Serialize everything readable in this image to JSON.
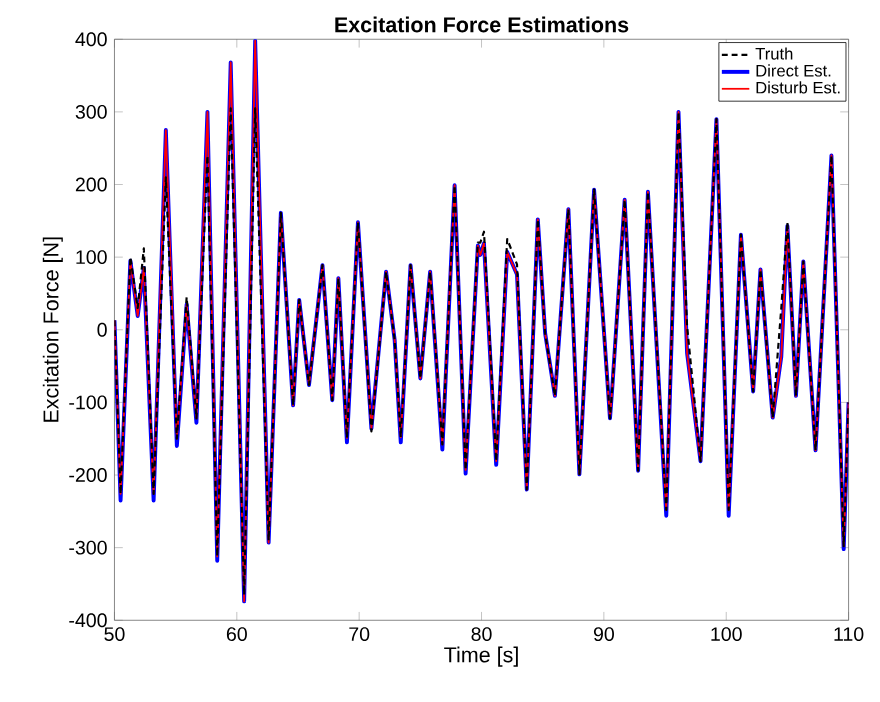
{
  "chart_data": {
    "type": "line",
    "title": "Excitation Force Estimations",
    "xlabel": "Time [s]",
    "ylabel": "Excitation Force [N]",
    "x": [
      50,
      50.5,
      51.3,
      51.9,
      52.4,
      53.2,
      54.2,
      55.1,
      55.9,
      56.7,
      57.6,
      58.4,
      59.5,
      60.6,
      61.5,
      62.6,
      63.6,
      64.6,
      65.1,
      65.9,
      67.0,
      67.8,
      68.3,
      69.0,
      69.9,
      71.0,
      72.2,
      72.9,
      73.4,
      74.2,
      75.0,
      75.8,
      76.8,
      77.8,
      78.7,
      79.7,
      79.9,
      80.2,
      81.2,
      82.1,
      82.9,
      83.7,
      84.6,
      85.2,
      86.0,
      87.1,
      88.0,
      89.2,
      90.5,
      90.7,
      91.7,
      92.8,
      93.6,
      95.1,
      96.1,
      96.8,
      97.9,
      99.2,
      100.2,
      101.2,
      102.2,
      102.8,
      103.8,
      104.5,
      105.0,
      105.7,
      106.3,
      107.3,
      108.6,
      109.6,
      110
    ],
    "series": [
      {
        "name": "Truth",
        "color": "#000000",
        "line_style": "dashed",
        "values": [
          13,
          -226,
          100,
          30,
          112,
          -226,
          210,
          -150,
          45,
          -122,
          240,
          -312,
          305,
          -365,
          305,
          -290,
          161,
          -104,
          41,
          -76,
          89,
          -97,
          71,
          -149,
          148,
          -140,
          80,
          -14,
          -148,
          89,
          -67,
          80,
          -158,
          199,
          -193,
          120,
          120,
          135,
          -181,
          125,
          90,
          -220,
          152,
          -5,
          -91,
          166,
          -199,
          193,
          -122,
          -77,
          179,
          -194,
          190,
          -248,
          300,
          5,
          -181,
          290,
          -248,
          131,
          -85,
          83,
          -121,
          30,
          148,
          -91,
          94,
          -166,
          240,
          -298,
          -100
        ]
      },
      {
        "name": "Direct Est.",
        "color": "#0000ff",
        "line_style": "solid",
        "values": [
          13,
          -235,
          95,
          19,
          85,
          -235,
          275,
          -160,
          35,
          -128,
          300,
          -318,
          368,
          -374,
          398,
          -293,
          161,
          -104,
          41,
          -76,
          89,
          -97,
          71,
          -155,
          148,
          -136,
          80,
          -14,
          -155,
          89,
          -67,
          80,
          -165,
          199,
          -198,
          116,
          103,
          119,
          -186,
          107,
          76,
          -220,
          152,
          -5,
          -91,
          166,
          -199,
          193,
          -122,
          -77,
          179,
          -194,
          190,
          -256,
          300,
          -32,
          -181,
          290,
          -256,
          131,
          -85,
          83,
          -121,
          -37,
          143,
          -91,
          94,
          -166,
          240,
          -302,
          -100
        ]
      },
      {
        "name": "Disturb Est.",
        "color": "#ff0000",
        "line_style": "solid",
        "values": [
          13,
          -226,
          95,
          19,
          85,
          -226,
          275,
          -150,
          35,
          -122,
          300,
          -312,
          368,
          -374,
          398,
          -293,
          161,
          -104,
          41,
          -76,
          89,
          -97,
          71,
          -149,
          148,
          -136,
          80,
          -14,
          -148,
          89,
          -67,
          80,
          -158,
          199,
          -193,
          116,
          103,
          119,
          -181,
          107,
          76,
          -220,
          152,
          -5,
          -91,
          166,
          -199,
          193,
          -122,
          -77,
          179,
          -194,
          190,
          -248,
          300,
          -32,
          -181,
          290,
          -248,
          131,
          -85,
          83,
          -121,
          -37,
          143,
          -91,
          94,
          -166,
          240,
          -298,
          -100
        ]
      }
    ],
    "xlim": [
      50,
      110
    ],
    "ylim": [
      -400,
      400
    ],
    "xticks": [
      50,
      60,
      70,
      80,
      90,
      100,
      110
    ],
    "yticks": [
      -400,
      -300,
      -200,
      -100,
      0,
      100,
      200,
      300,
      400
    ],
    "legend": "top right",
    "marker": "none",
    "grid": false
  }
}
